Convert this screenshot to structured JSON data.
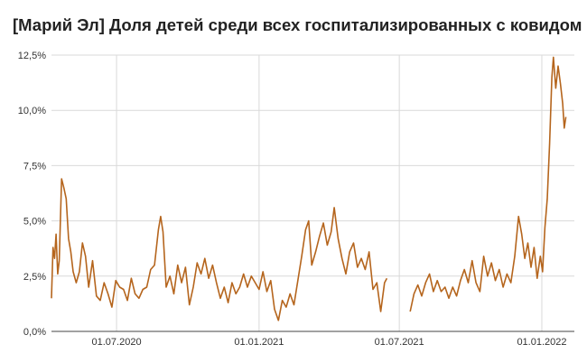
{
  "chart_data": {
    "type": "line",
    "title": "[Марий Эл] Доля детей среди всех госпитализированных с ковидом",
    "xlabel": "",
    "ylabel": "",
    "x_range": [
      "2020-04-08",
      "2022-02-12"
    ],
    "ylim": [
      0,
      12.5
    ],
    "y_ticks": [
      0,
      2.5,
      5,
      7.5,
      10,
      12.5
    ],
    "y_tick_labels": [
      "0,0%",
      "2,5%",
      "5,0%",
      "7,5%",
      "10,0%",
      "12,5%"
    ],
    "x_ticks": [
      "2020-07-01",
      "2021-01-01",
      "2021-07-01",
      "2022-01-01"
    ],
    "x_tick_labels": [
      "01.07.2020",
      "01.01.2021",
      "01.07.2021",
      "01.01.2022"
    ],
    "grid": true,
    "legend": "none",
    "line_color": "#b5651d",
    "series": [
      {
        "points": [
          [
            "2020-04-08",
            1.5
          ],
          [
            "2020-04-10",
            3.8
          ],
          [
            "2020-04-12",
            3.3
          ],
          [
            "2020-04-14",
            4.4
          ],
          [
            "2020-04-16",
            2.6
          ],
          [
            "2020-04-18",
            3.2
          ],
          [
            "2020-04-21",
            6.9
          ],
          [
            "2020-04-24",
            6.5
          ],
          [
            "2020-04-27",
            6.0
          ],
          [
            "2020-04-30",
            4.2
          ],
          [
            "2020-05-03",
            3.6
          ],
          [
            "2020-05-06",
            2.7
          ],
          [
            "2020-05-10",
            2.2
          ],
          [
            "2020-05-14",
            2.7
          ],
          [
            "2020-05-18",
            4.0
          ],
          [
            "2020-05-22",
            3.4
          ],
          [
            "2020-05-26",
            2.0
          ],
          [
            "2020-05-31",
            3.2
          ],
          [
            "2020-06-05",
            1.6
          ],
          [
            "2020-06-10",
            1.4
          ],
          [
            "2020-06-15",
            2.2
          ],
          [
            "2020-06-20",
            1.7
          ],
          [
            "2020-06-25",
            1.1
          ],
          [
            "2020-06-30",
            2.3
          ],
          [
            "2020-07-05",
            2.0
          ],
          [
            "2020-07-10",
            1.9
          ],
          [
            "2020-07-15",
            1.4
          ],
          [
            "2020-07-20",
            2.4
          ],
          [
            "2020-07-25",
            1.7
          ],
          [
            "2020-07-30",
            1.5
          ],
          [
            "2020-08-04",
            1.9
          ],
          [
            "2020-08-09",
            2.0
          ],
          [
            "2020-08-14",
            2.8
          ],
          [
            "2020-08-19",
            3.0
          ],
          [
            "2020-08-24",
            4.6
          ],
          [
            "2020-08-27",
            5.2
          ],
          [
            "2020-08-30",
            4.5
          ],
          [
            "2020-09-03",
            2.0
          ],
          [
            "2020-09-08",
            2.5
          ],
          [
            "2020-09-13",
            1.7
          ],
          [
            "2020-09-18",
            3.0
          ],
          [
            "2020-09-23",
            2.2
          ],
          [
            "2020-09-28",
            2.9
          ],
          [
            "2020-10-03",
            1.2
          ],
          [
            "2020-10-08",
            2.0
          ],
          [
            "2020-10-13",
            3.1
          ],
          [
            "2020-10-18",
            2.6
          ],
          [
            "2020-10-23",
            3.3
          ],
          [
            "2020-10-28",
            2.4
          ],
          [
            "2020-11-02",
            3.0
          ],
          [
            "2020-11-07",
            2.2
          ],
          [
            "2020-11-12",
            1.5
          ],
          [
            "2020-11-17",
            2.0
          ],
          [
            "2020-11-22",
            1.3
          ],
          [
            "2020-11-27",
            2.2
          ],
          [
            "2020-12-02",
            1.7
          ],
          [
            "2020-12-07",
            2.0
          ],
          [
            "2020-12-12",
            2.6
          ],
          [
            "2020-12-17",
            2.0
          ],
          [
            "2020-12-22",
            2.5
          ],
          [
            "2020-12-27",
            2.2
          ],
          [
            "2021-01-01",
            1.9
          ],
          [
            "2021-01-06",
            2.7
          ],
          [
            "2021-01-11",
            1.8
          ],
          [
            "2021-01-16",
            2.3
          ],
          [
            "2021-01-21",
            1.0
          ],
          [
            "2021-01-26",
            0.5
          ],
          [
            "2021-01-31",
            1.4
          ],
          [
            "2021-02-05",
            1.1
          ],
          [
            "2021-02-10",
            1.7
          ],
          [
            "2021-02-15",
            1.2
          ],
          [
            "2021-02-20",
            2.3
          ],
          [
            "2021-02-25",
            3.4
          ],
          [
            "2021-03-02",
            4.6
          ],
          [
            "2021-03-06",
            5.0
          ],
          [
            "2021-03-10",
            3.0
          ],
          [
            "2021-03-15",
            3.6
          ],
          [
            "2021-03-20",
            4.3
          ],
          [
            "2021-03-25",
            4.9
          ],
          [
            "2021-03-30",
            3.9
          ],
          [
            "2021-04-04",
            4.5
          ],
          [
            "2021-04-08",
            5.6
          ],
          [
            "2021-04-13",
            4.2
          ],
          [
            "2021-04-18",
            3.3
          ],
          [
            "2021-04-23",
            2.6
          ],
          [
            "2021-04-28",
            3.6
          ],
          [
            "2021-05-03",
            4.0
          ],
          [
            "2021-05-08",
            2.9
          ],
          [
            "2021-05-13",
            3.3
          ],
          [
            "2021-05-18",
            2.8
          ],
          [
            "2021-05-23",
            3.6
          ],
          [
            "2021-05-28",
            1.9
          ],
          [
            "2021-06-02",
            2.2
          ],
          [
            "2021-06-07",
            0.9
          ],
          [
            "2021-06-12",
            2.2
          ],
          [
            "2021-06-15",
            2.4
          ],
          null,
          [
            "2021-07-15",
            0.9
          ],
          [
            "2021-07-20",
            1.7
          ],
          [
            "2021-07-25",
            2.1
          ],
          [
            "2021-07-30",
            1.6
          ],
          [
            "2021-08-04",
            2.2
          ],
          [
            "2021-08-09",
            2.6
          ],
          [
            "2021-08-14",
            1.8
          ],
          [
            "2021-08-19",
            2.3
          ],
          [
            "2021-08-24",
            1.8
          ],
          [
            "2021-08-29",
            2.0
          ],
          [
            "2021-09-03",
            1.5
          ],
          [
            "2021-09-08",
            2.0
          ],
          [
            "2021-09-13",
            1.6
          ],
          [
            "2021-09-18",
            2.3
          ],
          [
            "2021-09-23",
            2.8
          ],
          [
            "2021-09-28",
            2.2
          ],
          [
            "2021-10-03",
            3.2
          ],
          [
            "2021-10-08",
            2.2
          ],
          [
            "2021-10-13",
            1.8
          ],
          [
            "2021-10-18",
            3.4
          ],
          [
            "2021-10-23",
            2.5
          ],
          [
            "2021-10-28",
            3.1
          ],
          [
            "2021-11-02",
            2.3
          ],
          [
            "2021-11-07",
            2.8
          ],
          [
            "2021-11-12",
            2.0
          ],
          [
            "2021-11-17",
            2.6
          ],
          [
            "2021-11-22",
            2.2
          ],
          [
            "2021-11-27",
            3.4
          ],
          [
            "2021-12-02",
            5.2
          ],
          [
            "2021-12-06",
            4.4
          ],
          [
            "2021-12-10",
            3.3
          ],
          [
            "2021-12-14",
            4.0
          ],
          [
            "2021-12-18",
            2.9
          ],
          [
            "2021-12-22",
            3.8
          ],
          [
            "2021-12-26",
            2.4
          ],
          [
            "2021-12-30",
            3.4
          ],
          [
            "2022-01-02",
            2.7
          ],
          [
            "2022-01-05",
            4.7
          ],
          [
            "2022-01-08",
            6.0
          ],
          [
            "2022-01-11",
            8.5
          ],
          [
            "2022-01-14",
            11.5
          ],
          [
            "2022-01-16",
            12.4
          ],
          [
            "2022-01-19",
            11.0
          ],
          [
            "2022-01-22",
            12.0
          ],
          [
            "2022-01-25",
            11.2
          ],
          [
            "2022-01-28",
            10.3
          ],
          [
            "2022-01-30",
            9.2
          ],
          [
            "2022-02-01",
            9.7
          ]
        ]
      }
    ]
  }
}
